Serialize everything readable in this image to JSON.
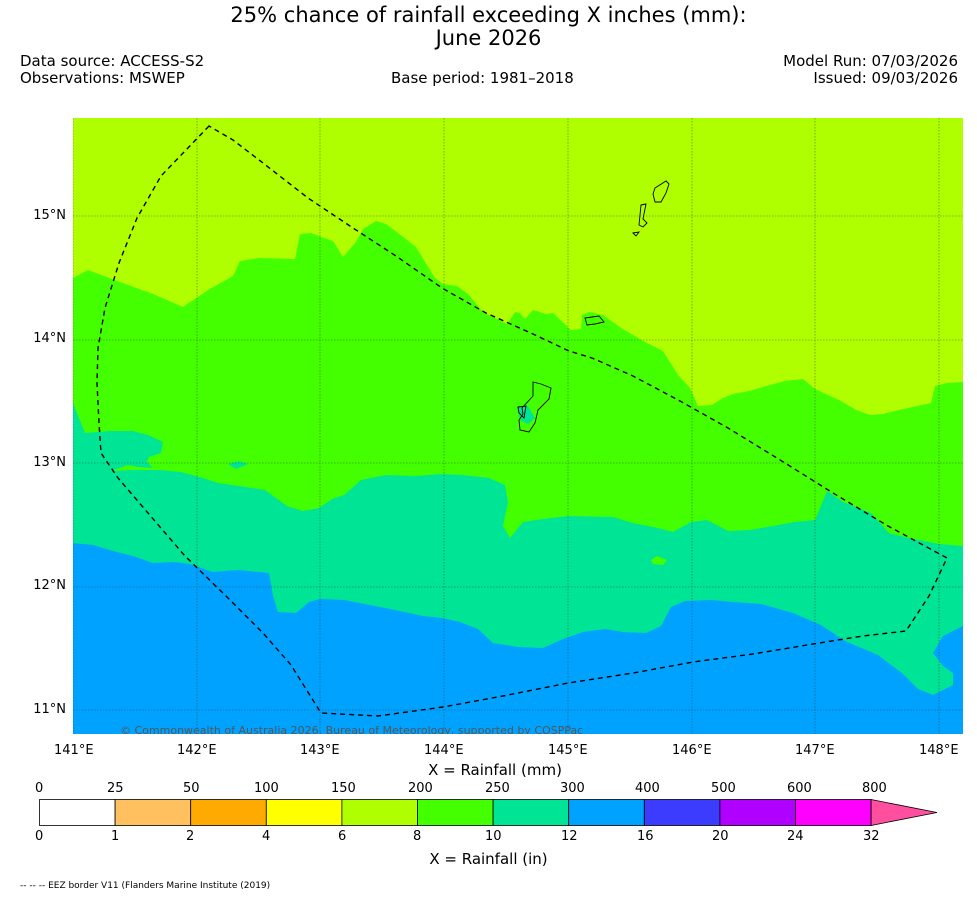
{
  "header": {
    "title_line1": "25% chance of rainfall exceeding X inches (mm):",
    "title_line2": "June 2026",
    "data_source": "Data source: ACCESS-S2",
    "observations": "Observations: MSWEP",
    "base_period": "Base period: 1981–2018",
    "model_run": "Model Run: 07/03/2026",
    "issued": "Issued: 09/03/2026"
  },
  "map": {
    "copyright": "© Commonwealth of Australia 2026, Bureau of Meteorology, supported by COSPPac",
    "lat_labels": [
      "15°N",
      "14°N",
      "13°N",
      "12°N",
      "11°N"
    ],
    "lon_labels": [
      "141°E",
      "142°E",
      "143°E",
      "144°E",
      "145°E",
      "146°E",
      "147°E",
      "148°E"
    ],
    "xlabel_mm": "X = Rainfall (mm)",
    "xlabel_in": "X = Rainfall (in)"
  },
  "colorbar": {
    "mm_ticks": [
      "0",
      "25",
      "50",
      "100",
      "150",
      "200",
      "250",
      "300",
      "400",
      "500",
      "600",
      "800"
    ],
    "in_ticks": [
      "0",
      "1",
      "2",
      "4",
      "6",
      "8",
      "10",
      "12",
      "16",
      "20",
      "24",
      "32"
    ],
    "colors": [
      "#ffffff",
      "#ffc060",
      "#ffaa00",
      "#ffff00",
      "#b0ff00",
      "#44ff00",
      "#00e495",
      "#00a2ff",
      "#3c3cff",
      "#b000ff",
      "#ff00ff"
    ],
    "extend_color": "#ff4f9e"
  },
  "footer": {
    "legend_note": "-- -- -- EEZ border V11 (Flanders Marine Institute (2019)"
  }
}
